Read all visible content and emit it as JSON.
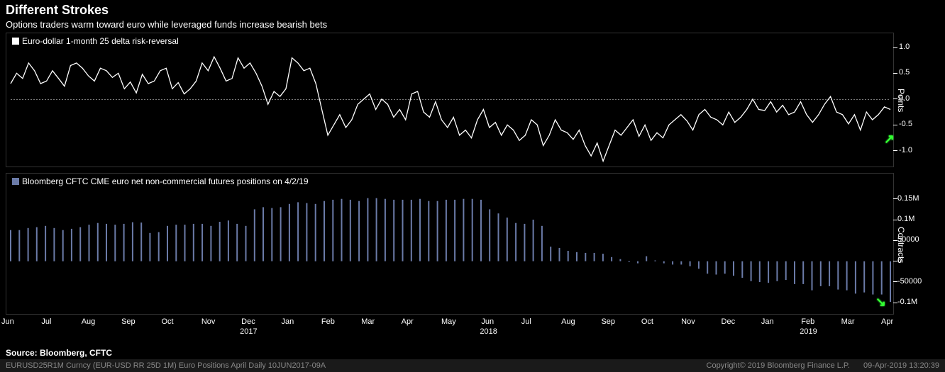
{
  "title": "Different Strokes",
  "subtitle": "Options traders warm toward euro while leveraged funds increase bearish bets",
  "source": "Source: Bloomberg, CFTC",
  "footer_left": "EURUSD25R1M Curncy (EUR-USD RR 25D 1M) Euro Positions April  Daily 10JUN2017-09A",
  "footer_copyright": "Copyright© 2019 Bloomberg Finance L.P.",
  "footer_timestamp": "09-Apr-2019 13:20:39",
  "colors": {
    "background": "#000000",
    "panel_border": "#444444",
    "text": "#ffffff",
    "footer_text": "#999999",
    "line_series": "#ffffff",
    "bar_series": "#6b7ba8",
    "zero_dotted": "#888888",
    "arrow": "#33ff33"
  },
  "x_axis": {
    "months": [
      "Jun",
      "Jul",
      "Aug",
      "Sep",
      "Oct",
      "Nov",
      "Dec",
      "Jan",
      "Feb",
      "Mar",
      "Apr",
      "May",
      "Jun",
      "Jul",
      "Aug",
      "Sep",
      "Oct",
      "Nov",
      "Dec",
      "Jan",
      "Feb",
      "Mar",
      "Apr"
    ],
    "years": [
      {
        "label": "2017",
        "month_index": 6
      },
      {
        "label": "2018",
        "month_index": 12
      },
      {
        "label": "2019",
        "month_index": 20
      }
    ]
  },
  "top_chart": {
    "type": "line",
    "legend": "Euro-dollar 1-month 25 delta risk-reversal",
    "y_label": "Points",
    "ylim": [
      -1.25,
      1.0
    ],
    "yticks": [
      1.0,
      0.5,
      0.0,
      -0.5,
      -1.0
    ],
    "zero_line": true,
    "data": [
      0.3,
      0.5,
      0.4,
      0.7,
      0.55,
      0.3,
      0.35,
      0.55,
      0.4,
      0.25,
      0.65,
      0.7,
      0.6,
      0.45,
      0.35,
      0.6,
      0.55,
      0.42,
      0.5,
      0.2,
      0.33,
      0.12,
      0.48,
      0.3,
      0.35,
      0.55,
      0.6,
      0.2,
      0.32,
      0.1,
      0.2,
      0.35,
      0.7,
      0.55,
      0.82,
      0.6,
      0.35,
      0.4,
      0.8,
      0.6,
      0.7,
      0.5,
      0.25,
      -0.1,
      0.15,
      0.05,
      0.2,
      0.8,
      0.7,
      0.55,
      0.6,
      0.3,
      -0.2,
      -0.7,
      -0.5,
      -0.3,
      -0.55,
      -0.4,
      -0.1,
      0.0,
      0.1,
      -0.2,
      0.0,
      -0.1,
      -0.35,
      -0.2,
      -0.4,
      0.1,
      0.15,
      -0.25,
      -0.35,
      -0.05,
      -0.4,
      -0.55,
      -0.35,
      -0.7,
      -0.6,
      -0.75,
      -0.4,
      -0.2,
      -0.55,
      -0.45,
      -0.7,
      -0.5,
      -0.6,
      -0.8,
      -0.7,
      -0.4,
      -0.5,
      -0.9,
      -0.7,
      -0.4,
      -0.6,
      -0.65,
      -0.78,
      -0.6,
      -0.9,
      -1.1,
      -0.85,
      -1.2,
      -0.9,
      -0.6,
      -0.7,
      -0.55,
      -0.4,
      -0.72,
      -0.5,
      -0.8,
      -0.65,
      -0.75,
      -0.5,
      -0.4,
      -0.3,
      -0.42,
      -0.6,
      -0.3,
      -0.2,
      -0.35,
      -0.4,
      -0.5,
      -0.25,
      -0.45,
      -0.35,
      -0.2,
      0.0,
      -0.2,
      -0.22,
      -0.05,
      -0.25,
      -0.12,
      -0.3,
      -0.25,
      -0.05,
      -0.3,
      -0.45,
      -0.3,
      -0.1,
      0.05,
      -0.25,
      -0.3,
      -0.48,
      -0.3,
      -0.6,
      -0.25,
      -0.4,
      -0.3,
      -0.15,
      -0.2
    ],
    "arrow_direction": "up"
  },
  "bottom_chart": {
    "type": "bar",
    "legend": "Bloomberg CFTC CME euro net non-commercial futures positions on 4/2/19",
    "y_label": "Contracts",
    "ylim": [
      -120000,
      170000
    ],
    "yticks": [
      {
        "v": 150000,
        "label": "0.15M"
      },
      {
        "v": 100000,
        "label": "0.1M"
      },
      {
        "v": 50000,
        "label": "50000"
      },
      {
        "v": 0,
        "label": "0"
      },
      {
        "v": -50000,
        "label": "-50000"
      },
      {
        "v": -100000,
        "label": "-0.1M"
      }
    ],
    "data": [
      75000,
      75000,
      80000,
      82000,
      85000,
      80000,
      75000,
      78000,
      82000,
      88000,
      92000,
      90000,
      88000,
      90000,
      94000,
      93000,
      68000,
      70000,
      85000,
      88000,
      88000,
      90000,
      90000,
      85000,
      95000,
      98000,
      90000,
      85000,
      125000,
      130000,
      128000,
      130000,
      138000,
      142000,
      140000,
      138000,
      145000,
      148000,
      150000,
      148000,
      145000,
      152000,
      152000,
      150000,
      148000,
      148000,
      148000,
      150000,
      145000,
      145000,
      148000,
      148000,
      150000,
      150000,
      148000,
      125000,
      115000,
      105000,
      92000,
      90000,
      100000,
      85000,
      35000,
      32000,
      25000,
      22000,
      20000,
      20000,
      18000,
      10000,
      5000,
      -2000,
      -5000,
      12000,
      2000,
      -5000,
      -8000,
      -8000,
      -12000,
      -18000,
      -30000,
      -32000,
      -30000,
      -35000,
      -40000,
      -48000,
      -50000,
      -52000,
      -48000,
      -45000,
      -55000,
      -55000,
      -70000,
      -60000,
      -60000,
      -68000,
      -70000,
      -78000,
      -75000,
      -80000,
      -80000,
      -98000
    ],
    "arrow_direction": "down"
  }
}
